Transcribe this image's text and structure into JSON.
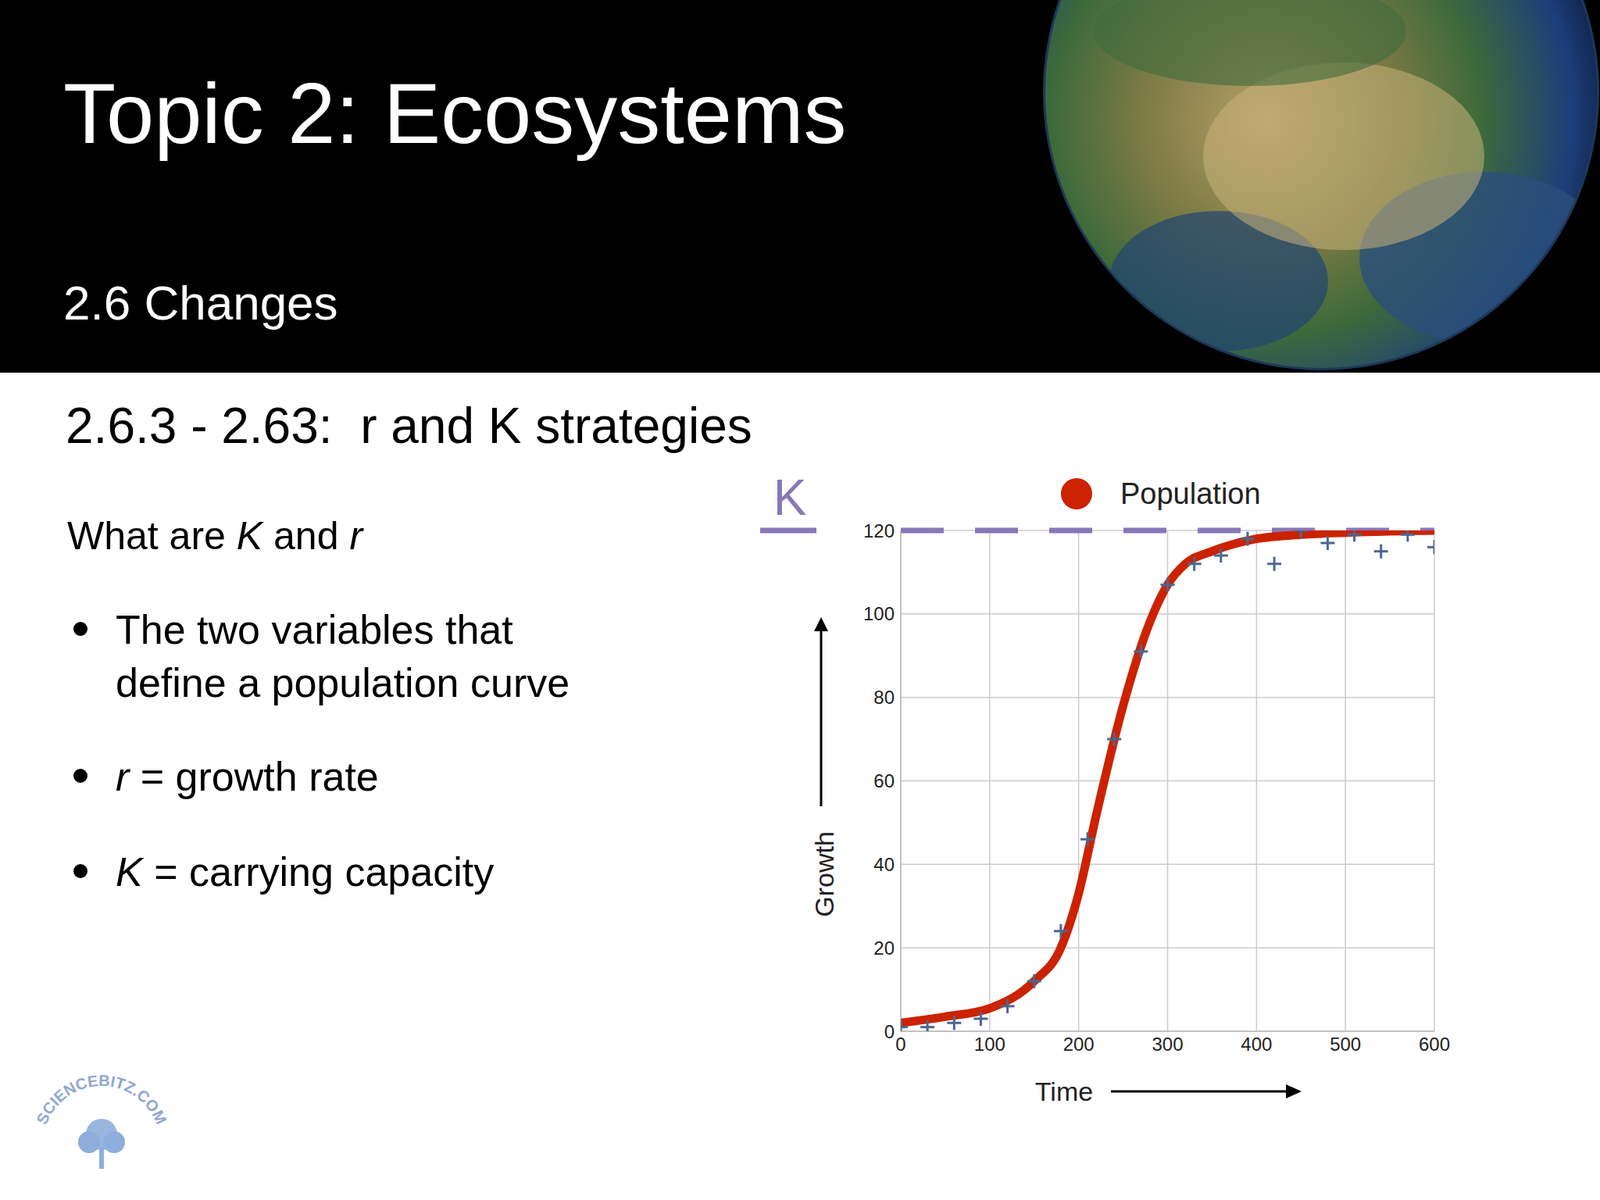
{
  "slide": {
    "title": "Topic 2: Ecosystems",
    "subtitle": "2.6 Changes",
    "heading": "2.6.3 - 2.63:  r and K strategies",
    "question": "What are K and r",
    "bullets": [
      "The two variables that define a population curve",
      "r = growth rate",
      "K = carrying capacity"
    ],
    "logo": "SCIENCEBITZ.COM"
  },
  "chart_data": {
    "type": "line",
    "x_label": "Time",
    "y_label": "Growth",
    "xlim": [
      0,
      600
    ],
    "ylim": [
      0,
      120
    ],
    "xticks": [
      0,
      100,
      200,
      300,
      400,
      500,
      600
    ],
    "yticks": [
      0,
      20,
      40,
      60,
      80,
      100,
      120
    ],
    "grid": true,
    "legend": "top",
    "series": [
      {
        "name": "Population",
        "type": "line",
        "color": "#cc2200",
        "marker": "none",
        "x": [
          0,
          50,
          100,
          150,
          180,
          200,
          220,
          250,
          280,
          300,
          320,
          350,
          400,
          450,
          500,
          600
        ],
        "values": [
          2,
          3.5,
          5.5,
          12,
          20,
          33,
          52,
          78,
          98,
          107,
          112,
          115,
          118,
          119,
          119.5,
          120
        ]
      },
      {
        "type": "scatter",
        "color": "#4a6890",
        "marker": "plus",
        "x": [
          0,
          30,
          60,
          90,
          120,
          150,
          180,
          210,
          240,
          270,
          300,
          330,
          360,
          390,
          420,
          450,
          480,
          510,
          540,
          570,
          600
        ],
        "values": [
          1,
          1,
          2,
          3,
          6,
          12,
          24,
          46,
          70,
          91,
          107,
          112,
          114,
          118,
          112,
          120,
          117,
          119,
          115,
          119,
          116
        ]
      }
    ],
    "annotations": [
      {
        "text": "K",
        "y": 120,
        "color": "#8878b8",
        "line_style": "dashed"
      }
    ]
  }
}
